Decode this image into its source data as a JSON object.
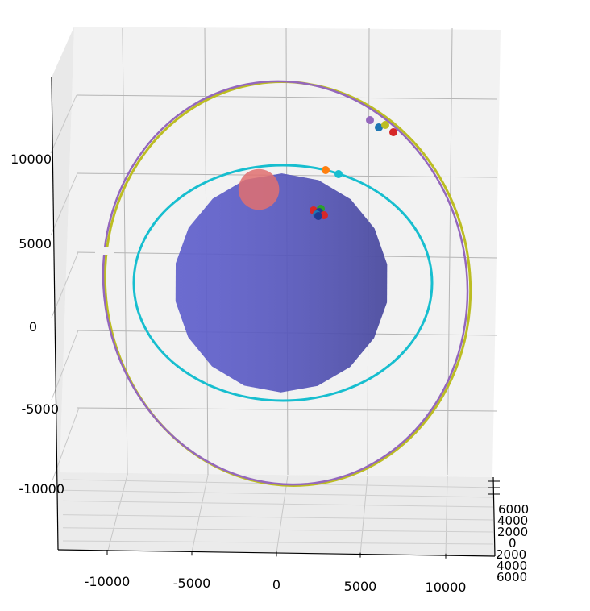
{
  "chart_data": {
    "type": "scatter3d",
    "title": "",
    "xlabel": "",
    "ylabel": "",
    "zlabel": "",
    "xlim": [
      -12500,
      12500
    ],
    "ylim": [
      -13500,
      14500
    ],
    "zlim": [
      -7000,
      7000
    ],
    "x_ticks": [
      "-10000",
      "-5000",
      "0",
      "5000",
      "10000"
    ],
    "y_ticks": [
      "-10000",
      "-5000",
      "0",
      "5000",
      "10000"
    ],
    "z_ticks": [
      "6000",
      "4000",
      "2000",
      "0",
      "2000",
      "4000",
      "6000"
    ],
    "grid": true,
    "legend": "none",
    "objects": [
      {
        "name": "",
        "kind": "sphere",
        "radius": 6371,
        "color": "#7070f0"
      },
      {
        "name": "",
        "kind": "sphere",
        "radius": 1100,
        "center": [
          -1000,
          8000,
          0
        ],
        "color": "#e07070"
      }
    ],
    "orbits": [
      {
        "name": "",
        "color": "#bcbd22",
        "kind": "ellipse",
        "radius": 11600
      },
      {
        "name": "",
        "color": "#9467bd",
        "kind": "ellipse",
        "radius": 11600
      },
      {
        "name": "",
        "color": "#17becf",
        "kind": "circle",
        "radius": 8700
      }
    ],
    "points": [
      {
        "x": 5700,
        "y": 12300,
        "color": "#9467bd"
      },
      {
        "x": 6300,
        "y": 11900,
        "color": "#1f77b4"
      },
      {
        "x": 6600,
        "y": 12100,
        "color": "#bcbd22"
      },
      {
        "x": 7100,
        "y": 11700,
        "color": "#d62728"
      },
      {
        "x": 1400,
        "y": 9400,
        "color": "#ff7f0e"
      },
      {
        "x": 2100,
        "y": 9100,
        "color": "#17becf"
      },
      {
        "x": 1050,
        "y": 7300,
        "color": "#d62728"
      },
      {
        "x": 1300,
        "y": 7400,
        "color": "#2ca02c"
      },
      {
        "x": 1500,
        "y": 7500,
        "color": "#1f3a93"
      },
      {
        "x": 1750,
        "y": 7150,
        "color": "#d62728"
      },
      {
        "x": 1300,
        "y": 7100,
        "color": "#1f77b4"
      },
      {
        "x": 1450,
        "y": 7050,
        "color": "#1f3a93"
      }
    ]
  }
}
